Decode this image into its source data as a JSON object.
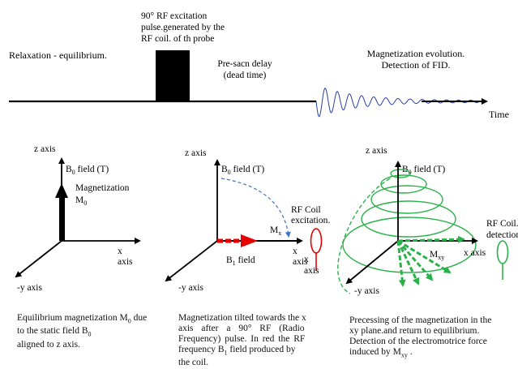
{
  "timeline": {
    "relax_label": "Relaxation - equilibrium.",
    "pulse_label": [
      "90° RF excitation",
      "pulse.generated by the",
      "RF coil. of th probe"
    ],
    "delay_label": [
      "Pre-sacn delay",
      "(dead time)"
    ],
    "evolution_label": [
      "Magnetization evolution.",
      "Detection of FID."
    ],
    "time_label": "Time"
  },
  "panel1": {
    "z_axis": "z axis",
    "b0": "B",
    "b0_sub": "0",
    "b0_rest": " field (T)",
    "mag_label": "Magnetization",
    "m0": "M",
    "m0_sub": "0",
    "x_axis_1": "x",
    "x_axis_2": "axis",
    "y_axis": "-y axis",
    "caption": {
      "l1a": "Equilibrium magnetization M",
      "l1sub": "0",
      "l1b": " due",
      "l2a": "to the static field B",
      "l2sub": "0",
      "l3": "aligned to z axis."
    }
  },
  "panel2": {
    "z_axis": "z axis",
    "b0": "B",
    "b0_sub": "0",
    "b0_rest": " field (T)",
    "mx": "M",
    "mx_sub": "x",
    "coil_label_1": "RF Coil",
    "coil_label_2": "excitation.",
    "x_axis_1": "x",
    "x_axis_2": "axis",
    "b1": "B",
    "b1_sub": "1",
    "b1_rest": " field",
    "y_axis": "-y axis",
    "caption": {
      "l1": "Magnetization tilted towards the x",
      "l2": "axis after a 90° RF (Radio",
      "l3": "Frequency) pulse. In red the RF",
      "l4a": "frequency B",
      "l4sub": "1",
      "l4b": " field produced by",
      "l5": "the coil."
    }
  },
  "panel3": {
    "z_axis": "z axis",
    "b0": "B",
    "b0_sub": "0",
    "b0_rest": " field (T)",
    "coil_label_1": "RF Coil.",
    "coil_label_2": "detection",
    "mxy": "M",
    "mxy_sub": "xy",
    "x_axis": "x axis",
    "y_axis": "-y axis",
    "caption": {
      "l1": "Precessing of the magnetization in the",
      "l2": "xy plane.and return to equilibrium.",
      "l3": "Detection of the electromotrice force",
      "l4a": "induced by  M",
      "l4sub": "xy",
      "l4b": " ."
    }
  },
  "colors": {
    "black": "#000000",
    "red": "#e60000",
    "blue_dash": "#3b73c8",
    "green": "#2ab24a",
    "fid": "#2c3fa3"
  },
  "icons": [
    "arrow-icon",
    "rf-coil-icon",
    "fid-signal-icon"
  ]
}
